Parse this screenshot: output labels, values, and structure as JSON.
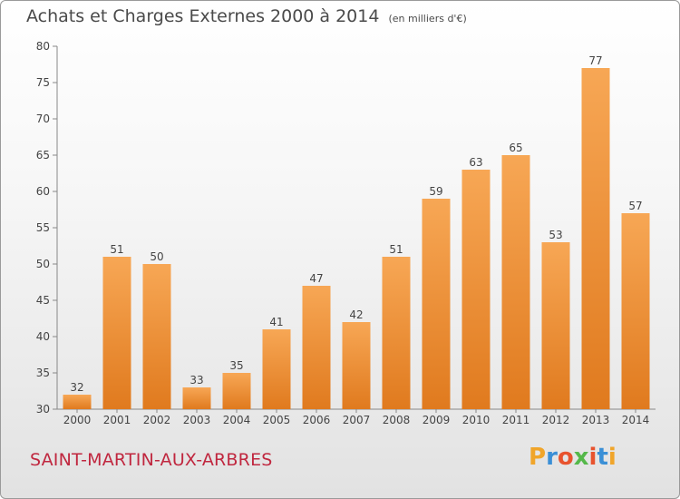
{
  "title": "Achats et Charges Externes 2000 à 2014",
  "subtitle": "(en milliers d'€)",
  "town": "SAINT-MARTIN-AUX-ARBRES",
  "logo": {
    "text": "Proxiti",
    "colors": [
      "#f0a52a",
      "#3a8fd6",
      "#e8532e",
      "#55b84a",
      "#e8532e",
      "#3a8fd6",
      "#f0a52a"
    ]
  },
  "chart_data": {
    "type": "bar",
    "categories": [
      "2000",
      "2001",
      "2002",
      "2003",
      "2004",
      "2005",
      "2006",
      "2007",
      "2008",
      "2009",
      "2010",
      "2011",
      "2012",
      "2013",
      "2014"
    ],
    "values": [
      32,
      51,
      50,
      33,
      35,
      41,
      47,
      42,
      51,
      59,
      63,
      65,
      53,
      77,
      57
    ],
    "ylim": [
      30,
      80
    ],
    "yticks": [
      30,
      35,
      40,
      45,
      50,
      55,
      60,
      65,
      70,
      75,
      80
    ],
    "grid": false,
    "bar_color": "#f0923a"
  }
}
